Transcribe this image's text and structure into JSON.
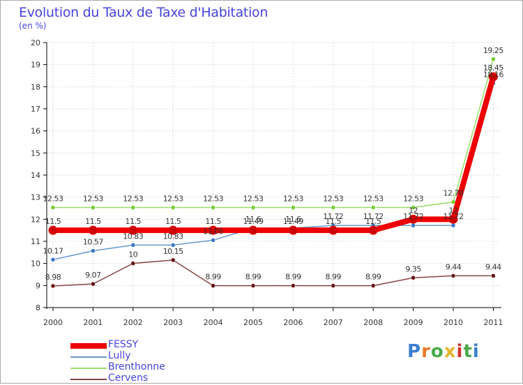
{
  "title": "Evolution du Taux de Taxe d'Habitation",
  "unit_label": "(en %)",
  "logo": {
    "text": "Proxiti",
    "colors": [
      "#3a7fd0",
      "#e8792a",
      "#4aa84a",
      "#e8b22a",
      "#d0342c",
      "#4aa84a",
      "#3a7fd0"
    ]
  },
  "chart_data": {
    "type": "line",
    "title": "Evolution du Taux de Taxe d'Habitation",
    "ylabel": "(en %)",
    "xlabel": "",
    "ylim": [
      8,
      20
    ],
    "yticks": [
      8,
      9,
      10,
      11,
      12,
      13,
      14,
      15,
      16,
      17,
      18,
      19,
      20
    ],
    "categories": [
      "2000",
      "2001",
      "2002",
      "2003",
      "2004",
      "2005",
      "2006",
      "2007",
      "2008",
      "2009",
      "2010",
      "2011"
    ],
    "series": [
      {
        "name": "FESSY",
        "color": "#ee0000",
        "point_color": "#cc0000",
        "thick": true,
        "values": [
          11.5,
          11.5,
          11.5,
          11.5,
          11.5,
          11.5,
          11.5,
          11.5,
          11.5,
          12,
          12,
          18.45
        ],
        "labels": [
          "11.5",
          "11.5",
          "11.5",
          "11.5",
          "11.5",
          "11.49",
          "11.49",
          "11.5",
          "11.5",
          "12",
          "12",
          "18.45"
        ]
      },
      {
        "name": "Lully",
        "color": "#6699cc",
        "point_color": "#3a78c8",
        "thick": false,
        "values": [
          10.17,
          10.57,
          10.83,
          10.83,
          11.05,
          11.6,
          11.6,
          11.72,
          11.72,
          11.72,
          11.72,
          18.16
        ],
        "labels": [
          "10.17",
          "10.57",
          "10.83",
          "10.83",
          "11.05",
          "11.6",
          "11.6",
          "11.72",
          "11.72",
          "11.72",
          "11.72",
          "18.16"
        ]
      },
      {
        "name": "Brenthonne",
        "color": "#99dd66",
        "point_color": "#77cc33",
        "thick": false,
        "values": [
          12.53,
          12.53,
          12.53,
          12.53,
          12.53,
          12.53,
          12.53,
          12.53,
          12.53,
          12.53,
          12.78,
          19.25
        ],
        "labels": [
          "12.53",
          "12.53",
          "12.53",
          "12.53",
          "12.53",
          "12.53",
          "12.53",
          "12.53",
          "12.53",
          "12.53",
          "12.78",
          "19.25"
        ]
      },
      {
        "name": "Cervens",
        "color": "#884444",
        "point_color": "#661111",
        "thick": false,
        "values": [
          8.98,
          9.07,
          10,
          10.15,
          8.99,
          8.99,
          8.99,
          8.99,
          8.99,
          9.35,
          9.44,
          9.44
        ],
        "labels": [
          "8.98",
          "9.07",
          "10",
          "10.15",
          "8.99",
          "8.99",
          "8.99",
          "8.99",
          "8.99",
          "9.35",
          "9.44",
          "9.44"
        ]
      }
    ]
  }
}
